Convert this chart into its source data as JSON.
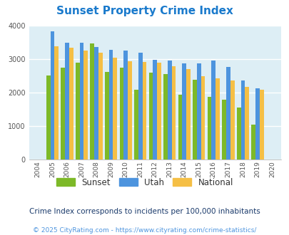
{
  "title": "Sunset Property Crime Index",
  "years": [
    "2004",
    "2005",
    "2006",
    "2007",
    "2008",
    "2009",
    "2010",
    "2011",
    "2012",
    "2013",
    "2014",
    "2015",
    "2016",
    "2017",
    "2018",
    "2019",
    "2020"
  ],
  "sunset": [
    null,
    2520,
    2750,
    2900,
    3470,
    2630,
    2750,
    2100,
    2600,
    2570,
    1940,
    2400,
    1880,
    1800,
    1560,
    1050,
    null
  ],
  "utah": [
    null,
    3840,
    3500,
    3490,
    3360,
    3280,
    3260,
    3200,
    2990,
    2970,
    2870,
    2870,
    2970,
    2770,
    2360,
    2140,
    null
  ],
  "national": [
    null,
    3400,
    3340,
    3270,
    3200,
    3040,
    2940,
    2930,
    2910,
    2790,
    2700,
    2490,
    2440,
    2360,
    2170,
    2100,
    null
  ],
  "sunset_color": "#7db928",
  "utah_color": "#4d94de",
  "national_color": "#f5bf45",
  "bg_color": "#ddeef5",
  "ylim": [
    0,
    4000
  ],
  "yticks": [
    0,
    1000,
    2000,
    3000,
    4000
  ],
  "subtitle": "Crime Index corresponds to incidents per 100,000 inhabitants",
  "footer": "© 2025 CityRating.com - https://www.cityrating.com/crime-statistics/",
  "title_color": "#1a7acc",
  "subtitle_color": "#1a3a6b",
  "footer_color": "#4d94de",
  "legend_labels": [
    "Sunset",
    "Utah",
    "National"
  ],
  "legend_text_color": "#333333"
}
